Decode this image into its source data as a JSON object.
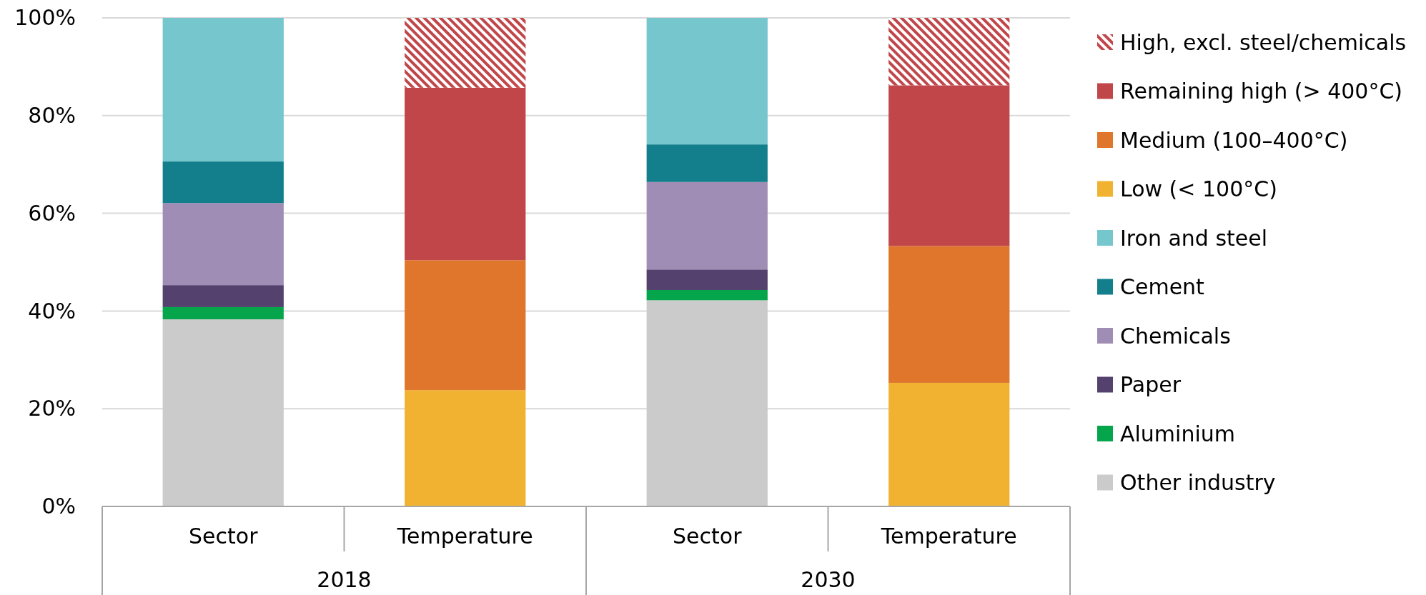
{
  "chart_data": {
    "type": "bar",
    "stacked": true,
    "categories": [
      "Sector",
      "Temperature",
      "Sector",
      "Temperature"
    ],
    "annotations": [
      "2018",
      "2030"
    ],
    "ylim": [
      0,
      100
    ],
    "yticks": [
      {
        "value": 0,
        "label": "0%"
      },
      {
        "value": 20,
        "label": "20%"
      },
      {
        "value": 40,
        "label": "40%"
      },
      {
        "value": 60,
        "label": "60%"
      },
      {
        "value": 80,
        "label": "80%"
      },
      {
        "value": 100,
        "label": "100%"
      }
    ],
    "grid": "y",
    "legend": "right",
    "series": [
      {
        "name": "Other industry",
        "color": "#cbcbcb",
        "values": [
          38.3,
          null,
          42.2,
          null
        ]
      },
      {
        "name": "Aluminium",
        "color": "#05a54c",
        "values": [
          2.5,
          null,
          2.1,
          null
        ]
      },
      {
        "name": "Paper",
        "color": "#54416e",
        "values": [
          4.5,
          null,
          4.2,
          null
        ]
      },
      {
        "name": "Chemicals",
        "color": "#a08db5",
        "values": [
          16.8,
          null,
          17.9,
          null
        ]
      },
      {
        "name": "Cement",
        "color": "#147f8c",
        "values": [
          8.5,
          null,
          7.7,
          null
        ]
      },
      {
        "name": "Iron and steel",
        "color": "#75c6cd",
        "values": [
          29.4,
          null,
          25.9,
          null
        ]
      },
      {
        "name": "Low (< 100°C)",
        "color": "#f2b231",
        "values": [
          null,
          23.8,
          null,
          25.3
        ]
      },
      {
        "name": "Medium (100–400°C)",
        "color": "#e0762c",
        "values": [
          null,
          26.6,
          null,
          28.0
        ]
      },
      {
        "name": "Remaining high (> 400°C)",
        "color": "#c0464a",
        "values": [
          null,
          35.3,
          null,
          32.9
        ]
      },
      {
        "name": "High, excl. steel/chemicals",
        "color": "#c0464a",
        "values": [
          null,
          14.3,
          null,
          13.8
        ]
      }
    ]
  }
}
